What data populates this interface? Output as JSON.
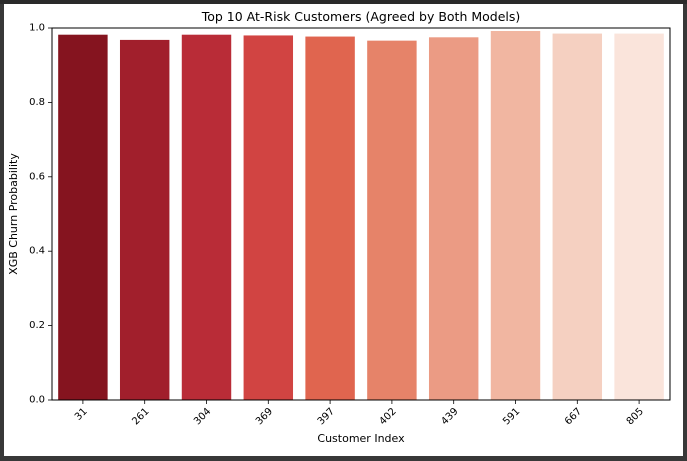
{
  "chart_data": {
    "type": "bar",
    "title": "Top 10 At-Risk Customers (Agreed by Both Models)",
    "xlabel": "Customer Index",
    "ylabel": "XGB Churn Probability",
    "categories": [
      "31",
      "261",
      "304",
      "369",
      "397",
      "402",
      "439",
      "591",
      "667",
      "805"
    ],
    "values": [
      0.982,
      0.968,
      0.982,
      0.98,
      0.977,
      0.966,
      0.975,
      0.992,
      0.985,
      0.985
    ],
    "ylim": [
      0,
      1.0
    ],
    "yticks": [
      "0.0",
      "0.2",
      "0.4",
      "0.6",
      "0.8",
      "1.0"
    ],
    "xtick_rotation": 45,
    "grid": false,
    "legend": "none",
    "colors": [
      "#85141f",
      "#a11f2c",
      "#b92c37",
      "#d14442",
      "#e0654f",
      "#e68369",
      "#eb9b84",
      "#f1b6a1",
      "#f5d0c1",
      "#fae4db"
    ]
  }
}
